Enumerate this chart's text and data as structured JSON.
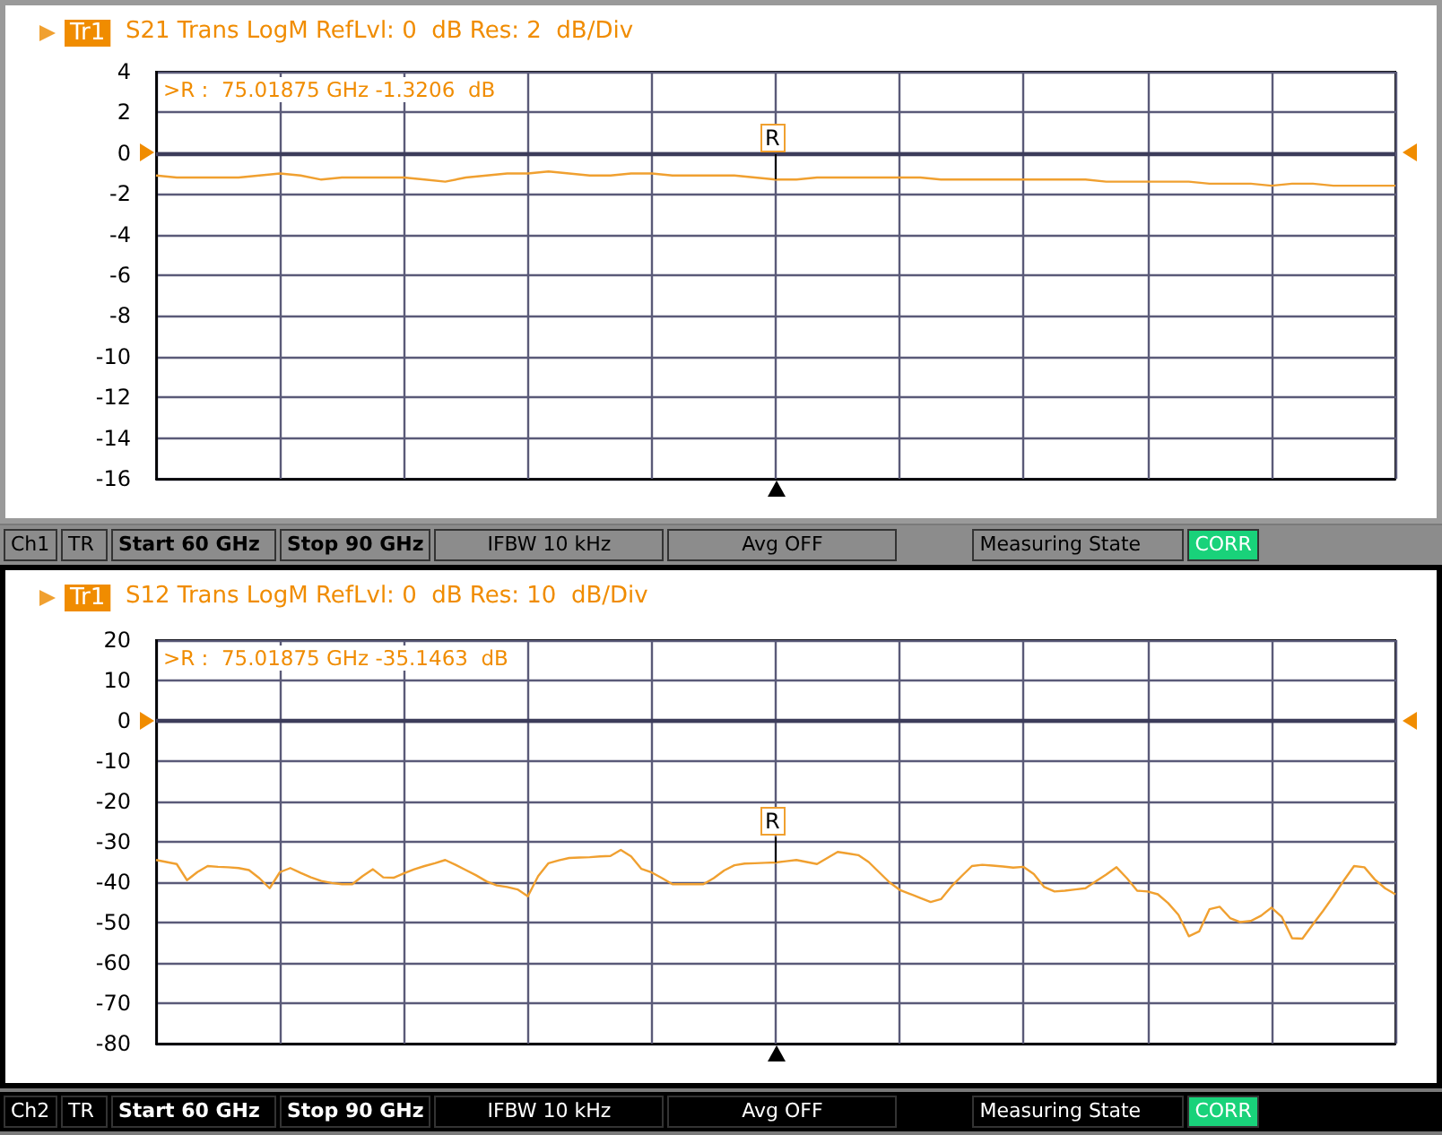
{
  "chart_data": [
    {
      "type": "line",
      "title": "S21 Trans LogM RefLvl: 0  dB Res: 2  dB/Div",
      "legend": "top left",
      "grid": true,
      "tick_labels": "y",
      "marker": "none",
      "categories": [
        null,
        null,
        null,
        null,
        null,
        null,
        null,
        null,
        null,
        null,
        null,
        null,
        null,
        null,
        null,
        null,
        null,
        null,
        null,
        null,
        null,
        null,
        null,
        null,
        null,
        null,
        null,
        null,
        null,
        null,
        null,
        null,
        null,
        null,
        null,
        null,
        null,
        null,
        null,
        null,
        null,
        null,
        null,
        null,
        null,
        null,
        null,
        null,
        null,
        null,
        null,
        null,
        null,
        null,
        null,
        null,
        null,
        null,
        null,
        null,
        null
      ],
      "ylim": [
        -16,
        4
      ],
      "yticks": [
        -16,
        -14,
        -12,
        -10,
        -8,
        -6,
        -4,
        -2,
        0,
        2,
        4
      ],
      "ref_lines": [
        {
          "axis": "y",
          "value": 0,
          "label": null,
          "color": "#3c3c5a"
        }
      ],
      "annotations": [
        {
          "text": "R",
          "y": -1.3206
        },
        ">R :  75.01875 GHz -1.3206  dB",
        "Ch1",
        "TR",
        "Start 60 GHz",
        "Stop 90 GHz",
        "IFBW 10 kHz",
        "Avg OFF",
        "Measuring State",
        "CORR"
      ],
      "series": [
        {
          "name": "Tr1",
          "color": "#f0a030",
          "values": [
            -1.1,
            -1.2,
            -1.2,
            -1.2,
            -1.2,
            -1.1,
            -1.0,
            -1.1,
            -1.3,
            -1.2,
            -1.2,
            -1.2,
            -1.2,
            -1.3,
            -1.4,
            -1.2,
            -1.1,
            -1.0,
            -1.0,
            -0.9,
            -1.0,
            -1.1,
            -1.1,
            -1.0,
            -1.0,
            -1.1,
            -1.1,
            -1.1,
            -1.1,
            -1.2,
            -1.3,
            -1.3,
            -1.2,
            -1.2,
            -1.2,
            -1.2,
            -1.2,
            -1.2,
            -1.3,
            -1.3,
            -1.3,
            -1.3,
            -1.3,
            -1.3,
            -1.3,
            -1.3,
            -1.4,
            -1.4,
            -1.4,
            -1.4,
            -1.4,
            -1.5,
            -1.5,
            -1.5,
            -1.6,
            -1.5,
            -1.5,
            -1.6,
            -1.6,
            -1.6,
            -1.6
          ]
        }
      ]
    },
    {
      "type": "line",
      "title": "S12 Trans LogM RefLvl: 0  dB Res: 10  dB/Div",
      "legend": "top left",
      "grid": true,
      "tick_labels": "y",
      "marker": "none",
      "categories": [
        null,
        null,
        null,
        null,
        null,
        null,
        null,
        null,
        null,
        null,
        null,
        null,
        null,
        null,
        null,
        null,
        null,
        null,
        null,
        null,
        null,
        null,
        null,
        null,
        null,
        null,
        null,
        null,
        null,
        null,
        null,
        null,
        null,
        null,
        null,
        null,
        null,
        null,
        null,
        null,
        null,
        null,
        null,
        null,
        null,
        null,
        null,
        null,
        null,
        null,
        null,
        null,
        null,
        null,
        null,
        null,
        null,
        null,
        null,
        null,
        null,
        null,
        null,
        null,
        null,
        null,
        null,
        null,
        null,
        null,
        null,
        null,
        null,
        null,
        null,
        null,
        null,
        null,
        null,
        null,
        null,
        null,
        null,
        null,
        null,
        null,
        null,
        null,
        null,
        null,
        null,
        null,
        null,
        null,
        null,
        null,
        null,
        null,
        null,
        null,
        null,
        null,
        null,
        null,
        null,
        null,
        null,
        null,
        null,
        null,
        null,
        null,
        null,
        null,
        null,
        null,
        null,
        null,
        null,
        null,
        null
      ],
      "ylim": [
        -80,
        20
      ],
      "yticks": [
        -80,
        -70,
        -60,
        -50,
        -40,
        -30,
        -20,
        -10,
        0,
        10,
        20
      ],
      "ref_lines": [
        {
          "axis": "y",
          "value": 0,
          "label": null,
          "color": "#3c3c5a"
        }
      ],
      "annotations": [
        {
          "text": "R",
          "y": -35.1463
        },
        ">R :  75.01875 GHz -35.1463  dB",
        "Ch2",
        "TR",
        "Start 60 GHz",
        "Stop 90 GHz",
        "IFBW 10 kHz",
        "Avg OFF",
        "Measuring State",
        "CORR"
      ],
      "series": [
        {
          "name": "Tr1",
          "color": "#f0a030",
          "values": [
            -34.5,
            -35,
            -35.5,
            -39.5,
            -37.5,
            -36,
            -36.2,
            -36.3,
            -36.5,
            -37,
            -39,
            -41.5,
            -37.5,
            -36.5,
            -37.7,
            -38.8,
            -39.7,
            -40.2,
            -40.5,
            -40.5,
            -38.5,
            -36.8,
            -38.8,
            -38.9,
            -37.8,
            -36.8,
            -36,
            -35.3,
            -34.5,
            -35.7,
            -37,
            -38.3,
            -39.8,
            -40.8,
            -41.2,
            -41.8,
            -43.5,
            -38.5,
            -35.3,
            -34.6,
            -34,
            -33.9,
            -33.8,
            -33.6,
            -33.5,
            -32,
            -33.6,
            -36.7,
            -37.6,
            -39,
            -40.5,
            -40.5,
            -40.5,
            -40.5,
            -39,
            -37.1,
            -35.8,
            -35.4,
            -35.3,
            -35.2,
            -35.1,
            -34.8,
            -34.5,
            -35,
            -35.5,
            -34,
            -32.5,
            -32.9,
            -33.3,
            -35,
            -37.5,
            -40,
            -41.9,
            -42.9,
            -43.9,
            -44.9,
            -44.2,
            -41.1,
            -38.5,
            -36,
            -35.7,
            -35.9,
            -36.1,
            -36.4,
            -36.2,
            -38,
            -41.2,
            -42.3,
            -42.1,
            -41.8,
            -41.5,
            -39.8,
            -38.1,
            -36.3,
            -39,
            -42.1,
            -42.3,
            -43,
            -45.2,
            -48.1,
            -53.4,
            -52.2,
            -46.7,
            -46.1,
            -48.9,
            -49.9,
            -49.6,
            -48.3,
            -46.3,
            -48.6,
            -53.9,
            -54,
            -50.5,
            -47.1,
            -43.5,
            -39.6,
            -36,
            -36.3,
            -39.3,
            -41.5,
            -43
          ]
        }
      ]
    }
  ]
}
